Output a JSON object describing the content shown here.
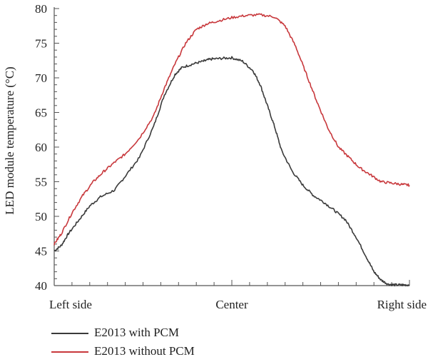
{
  "chart_data": {
    "type": "line",
    "ylabel": "LED module temperature (°C)",
    "xlabel": "",
    "ylim": [
      40,
      80
    ],
    "yticks": [
      40,
      45,
      50,
      55,
      60,
      65,
      70,
      75,
      80
    ],
    "xlim": [
      0,
      1
    ],
    "xtick_labels": [
      {
        "x": 0.0,
        "label": "Left side"
      },
      {
        "x": 0.5,
        "label": "Center"
      },
      {
        "x": 1.0,
        "label": "Right side"
      }
    ],
    "grid": false,
    "legend": "bottom",
    "series": [
      {
        "name": "E2013 with PCM",
        "color": "#3a3a3a",
        "x": [
          0.0,
          0.02,
          0.04,
          0.07,
          0.1,
          0.13,
          0.17,
          0.2,
          0.24,
          0.28,
          0.31,
          0.34,
          0.36,
          0.39,
          0.42,
          0.44,
          0.47,
          0.5,
          0.53,
          0.56,
          0.58,
          0.6,
          0.62,
          0.64,
          0.67,
          0.7,
          0.73,
          0.76,
          0.79,
          0.82,
          0.85,
          0.88,
          0.9,
          0.92,
          0.94,
          0.96,
          0.98,
          1.0
        ],
        "y": [
          45.0,
          45.8,
          47.5,
          49.5,
          51.5,
          52.8,
          53.8,
          55.8,
          58.5,
          63.0,
          67.5,
          70.5,
          71.5,
          72.0,
          72.4,
          72.7,
          72.8,
          72.9,
          72.4,
          71.0,
          69.0,
          66.0,
          63.0,
          59.5,
          56.5,
          54.5,
          53.0,
          52.0,
          50.8,
          49.5,
          47.0,
          44.0,
          42.0,
          40.8,
          40.2,
          40.1,
          40.1,
          40.1
        ]
      },
      {
        "name": "E2013 without PCM",
        "color": "#c8383c",
        "x": [
          0.0,
          0.02,
          0.05,
          0.08,
          0.11,
          0.14,
          0.17,
          0.2,
          0.24,
          0.28,
          0.31,
          0.34,
          0.37,
          0.4,
          0.43,
          0.46,
          0.5,
          0.54,
          0.58,
          0.62,
          0.65,
          0.68,
          0.71,
          0.74,
          0.77,
          0.8,
          0.83,
          0.86,
          0.89,
          0.92,
          0.95,
          0.98,
          1.0
        ],
        "y": [
          46.0,
          47.5,
          50.5,
          53.0,
          55.0,
          56.5,
          57.8,
          59.0,
          61.3,
          64.5,
          68.5,
          72.0,
          75.0,
          77.0,
          77.8,
          78.2,
          78.7,
          79.0,
          79.1,
          78.8,
          77.5,
          74.5,
          70.5,
          66.5,
          62.8,
          60.0,
          58.5,
          57.0,
          56.0,
          55.0,
          54.8,
          54.6,
          54.5
        ]
      }
    ]
  }
}
